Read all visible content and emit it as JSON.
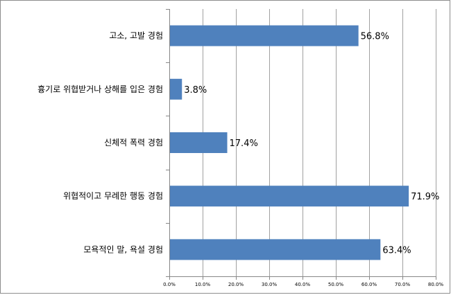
{
  "chart_data": {
    "type": "bar",
    "orientation": "horizontal",
    "categories": [
      "고소, 고발 경험",
      "흉기로 위협받거나 상해를 입은 경험",
      "신체적 폭력 경험",
      "위협적이고 무례한 행동 경험",
      "모욕적인 말, 욕설 경험"
    ],
    "values": [
      56.8,
      3.8,
      17.4,
      71.9,
      63.4
    ],
    "value_labels": [
      "56.8%",
      "3.8%",
      "17.4%",
      "71.9%",
      "63.4%"
    ],
    "xlim": [
      0,
      80
    ],
    "x_ticks": [
      0,
      10,
      20,
      30,
      40,
      50,
      60,
      70,
      80
    ],
    "x_tick_labels": [
      "0.0%",
      "10.0%",
      "20.0%",
      "30.0%",
      "40.0%",
      "50.0%",
      "60.0%",
      "70.0%",
      "80.0%"
    ],
    "title": "",
    "xlabel": "",
    "ylabel": "",
    "grid": true,
    "legend": false,
    "colors": {
      "bar": "#4f81bd",
      "grid": "#a0a0a0",
      "axis": "#868686",
      "text": "#000000"
    }
  }
}
